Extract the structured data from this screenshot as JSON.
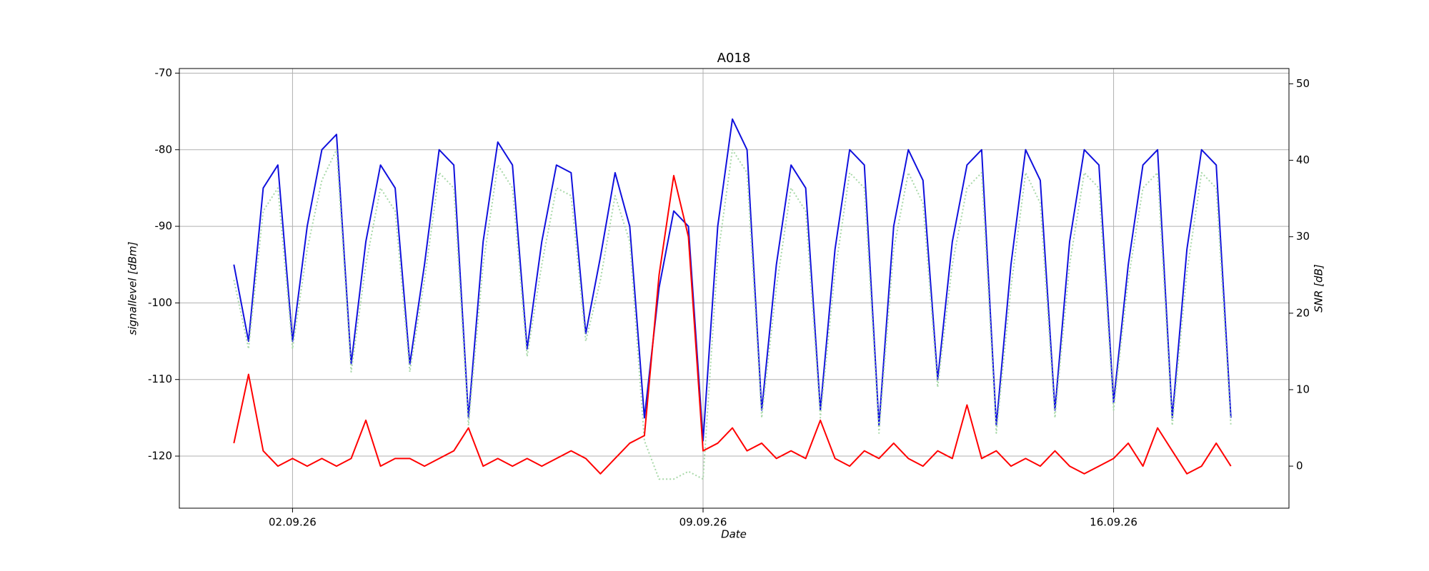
{
  "chart_data": {
    "type": "line",
    "title": "A018",
    "x_label": "Date",
    "y_label": "signallevel [dBm]",
    "y2_label": "SNR [dB]",
    "grid": true,
    "xlim": [
      0.07,
      18.99
    ],
    "xticks": [
      {
        "value": 2,
        "label": "02.09.26"
      },
      {
        "value": 9,
        "label": "09.09.26"
      },
      {
        "value": 16,
        "label": "16.09.26"
      }
    ],
    "ylim": [
      -126.8,
      -69.4
    ],
    "yticks": [
      -120,
      -110,
      -100,
      -90,
      -80,
      -70
    ],
    "y2lim": [
      -5.5,
      52
    ],
    "y2ticks": [
      0,
      10,
      20,
      30,
      40,
      50
    ],
    "x": [
      1,
      1.25,
      1.5,
      1.75,
      2,
      2.25,
      2.5,
      2.75,
      3,
      3.25,
      3.5,
      3.75,
      4,
      4.25,
      4.5,
      4.75,
      5,
      5.25,
      5.5,
      5.75,
      6,
      6.25,
      6.5,
      6.75,
      7,
      7.25,
      7.5,
      7.75,
      8,
      8.25,
      8.5,
      8.75,
      9,
      9.25,
      9.5,
      9.75,
      10,
      10.25,
      10.5,
      10.75,
      11,
      11.25,
      11.5,
      11.75,
      12,
      12.25,
      12.5,
      12.75,
      13,
      13.25,
      13.5,
      13.75,
      14,
      14.25,
      14.5,
      14.75,
      15,
      15.25,
      15.5,
      15.75,
      16,
      16.25,
      16.5,
      16.75,
      17,
      17.25,
      17.5,
      17.75,
      18
    ],
    "series": [
      {
        "color": "#1010dd",
        "values": [
          -95,
          -105,
          -85,
          -82,
          -105,
          -90,
          -80,
          -78,
          -108,
          -92,
          -82,
          -85,
          -108,
          -95,
          -80,
          -82,
          -115,
          -92,
          -79,
          -82,
          -106,
          -92,
          -82,
          -83,
          -104,
          -94,
          -83,
          -90,
          -115,
          -98,
          -88,
          -90,
          -118,
          -90,
          -76,
          -80,
          -114,
          -95,
          -82,
          -85,
          -114,
          -93,
          -80,
          -82,
          -116,
          -90,
          -80,
          -84,
          -110,
          -92,
          -82,
          -80,
          -116,
          -95,
          -80,
          -84,
          -114,
          -92,
          -80,
          -82,
          -113,
          -95,
          -82,
          -80,
          -115,
          -93,
          -80,
          -82,
          -115
        ]
      },
      {
        "color": "#a8d8a8",
        "dashed": true,
        "values": [
          -97,
          -106,
          -88,
          -85,
          -106,
          -93,
          -84,
          -80,
          -109,
          -95,
          -85,
          -88,
          -109,
          -97,
          -83,
          -85,
          -116,
          -95,
          -82,
          -85,
          -107,
          -95,
          -85,
          -86,
          -105,
          -97,
          -86,
          -92,
          -118,
          -123,
          -123,
          -122,
          -123,
          -94,
          -80,
          -83,
          -115,
          -98,
          -85,
          -88,
          -115,
          -96,
          -83,
          -85,
          -117,
          -93,
          -83,
          -87,
          -111,
          -95,
          -85,
          -83,
          -117,
          -98,
          -83,
          -87,
          -115,
          -95,
          -83,
          -85,
          -114,
          -97,
          -85,
          -83,
          -116,
          -96,
          -83,
          -85,
          -116
        ]
      },
      {
        "color": "#ff0000",
        "axis": "y2",
        "values": [
          3,
          12,
          2,
          0,
          1,
          0,
          1,
          0,
          1,
          6,
          0,
          1,
          1,
          0,
          1,
          2,
          5,
          0,
          1,
          0,
          1,
          0,
          1,
          2,
          1,
          -1,
          1,
          3,
          4,
          25,
          38,
          30,
          2,
          3,
          5,
          2,
          3,
          1,
          2,
          1,
          6,
          1,
          0,
          2,
          1,
          3,
          1,
          0,
          2,
          1,
          8,
          1,
          2,
          0,
          1,
          0,
          2,
          0,
          -1,
          0,
          1,
          3,
          0,
          5,
          2,
          -1,
          0,
          3,
          0
        ]
      }
    ]
  }
}
